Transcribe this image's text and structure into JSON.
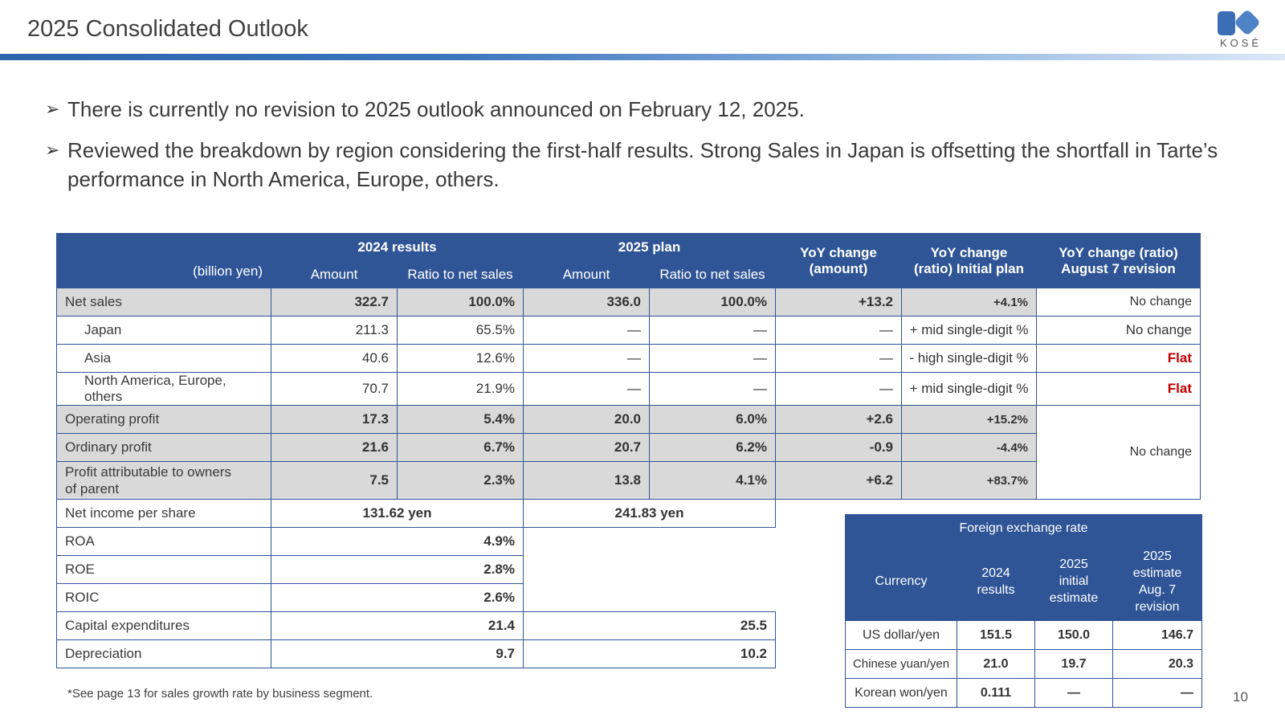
{
  "header": {
    "title": "2025 Consolidated Outlook",
    "brand": "KOSÉ"
  },
  "bullets": [
    "There is currently no revision to 2025 outlook announced on February 12, 2025.",
    "Reviewed the breakdown by region considering the first-half results. Strong Sales in Japan is offsetting the shortfall in Tarte’s performance in North America, Europe, others."
  ],
  "main_table": {
    "unit": "(billion yen)",
    "group_2024": "2024 results",
    "group_2025": "2025 plan",
    "col_amount": "Amount",
    "col_ratio": "Ratio to net sales",
    "col_yoy_amount": "YoY change (amount)",
    "col_yoy_ratio_initial": "YoY change (ratio) Initial plan",
    "col_yoy_ratio_aug": "YoY change (ratio) August 7 revision",
    "rows": {
      "net_sales": {
        "label": "Net sales",
        "a24": "322.7",
        "r24": "100.0%",
        "a25": "336.0",
        "r25": "100.0%",
        "yoy": "+13.2",
        "ratio": "+4.1%",
        "aug": "No change"
      },
      "japan": {
        "label": "Japan",
        "a24": "211.3",
        "r24": "65.5%",
        "a25": "—",
        "r25": "—",
        "yoy": "—",
        "ratio": "+ mid single-digit %",
        "aug": "No change"
      },
      "asia": {
        "label": "Asia",
        "a24": "40.6",
        "r24": "12.6%",
        "a25": "—",
        "r25": "—",
        "yoy": "—",
        "ratio": "- high single-digit %",
        "aug": "Flat"
      },
      "na": {
        "label": "North America, Europe, others",
        "a24": "70.7",
        "r24": "21.9%",
        "a25": "—",
        "r25": "—",
        "yoy": "—",
        "ratio": "+ mid single-digit %",
        "aug": "Flat"
      },
      "op": {
        "label": "Operating profit",
        "a24": "17.3",
        "r24": "5.4%",
        "a25": "20.0",
        "r25": "6.0%",
        "yoy": "+2.6",
        "ratio": "+15.2%"
      },
      "ord": {
        "label": "Ordinary profit",
        "a24": "21.6",
        "r24": "6.7%",
        "a25": "20.7",
        "r25": "6.2%",
        "yoy": "-0.9",
        "ratio": "-4.4%"
      },
      "parent": {
        "label_line1": "Profit attributable to owners",
        "label_line2": "of parent",
        "a24": "7.5",
        "r24": "2.3%",
        "a25": "13.8",
        "r25": "4.1%",
        "yoy": "+6.2",
        "ratio": "+83.7%"
      },
      "profit_aug": "No change",
      "eps": {
        "label": "Net income per share",
        "v24": "131.62 yen",
        "v25": "241.83 yen"
      },
      "roa": {
        "label": "ROA",
        "v24": "4.9%"
      },
      "roe": {
        "label": "ROE",
        "v24": "2.8%"
      },
      "roic": {
        "label": "ROIC",
        "v24": "2.6%"
      },
      "capex": {
        "label": "Capital expenditures",
        "v24": "21.4",
        "v25": "25.5"
      },
      "dep": {
        "label": "Depreciation",
        "v24": "9.7",
        "v25": "10.2"
      }
    }
  },
  "fx_table": {
    "title": "Foreign exchange rate",
    "col_currency": "Currency",
    "col_2024": "2024 results",
    "col_2025_initial": "2025 initial estimate",
    "col_2025_aug": "2025 estimate Aug. 7 revision",
    "rows": [
      {
        "currency": "US dollar/yen",
        "v24": "151.5",
        "v25i": "150.0",
        "v25a": "146.7"
      },
      {
        "currency": "Chinese yuan/yen",
        "v24": "21.0",
        "v25i": "19.7",
        "v25a": "20.3"
      },
      {
        "currency": "Korean won/yen",
        "v24": "0.111",
        "v25i": "—",
        "v25a": "—"
      }
    ]
  },
  "footnote": "*See page 13 for sales growth rate by business segment.",
  "page_number": "10",
  "colors": {
    "header_blue": "#2f5597",
    "gray_row": "#d9d9d9",
    "flat_red": "#c00000"
  }
}
